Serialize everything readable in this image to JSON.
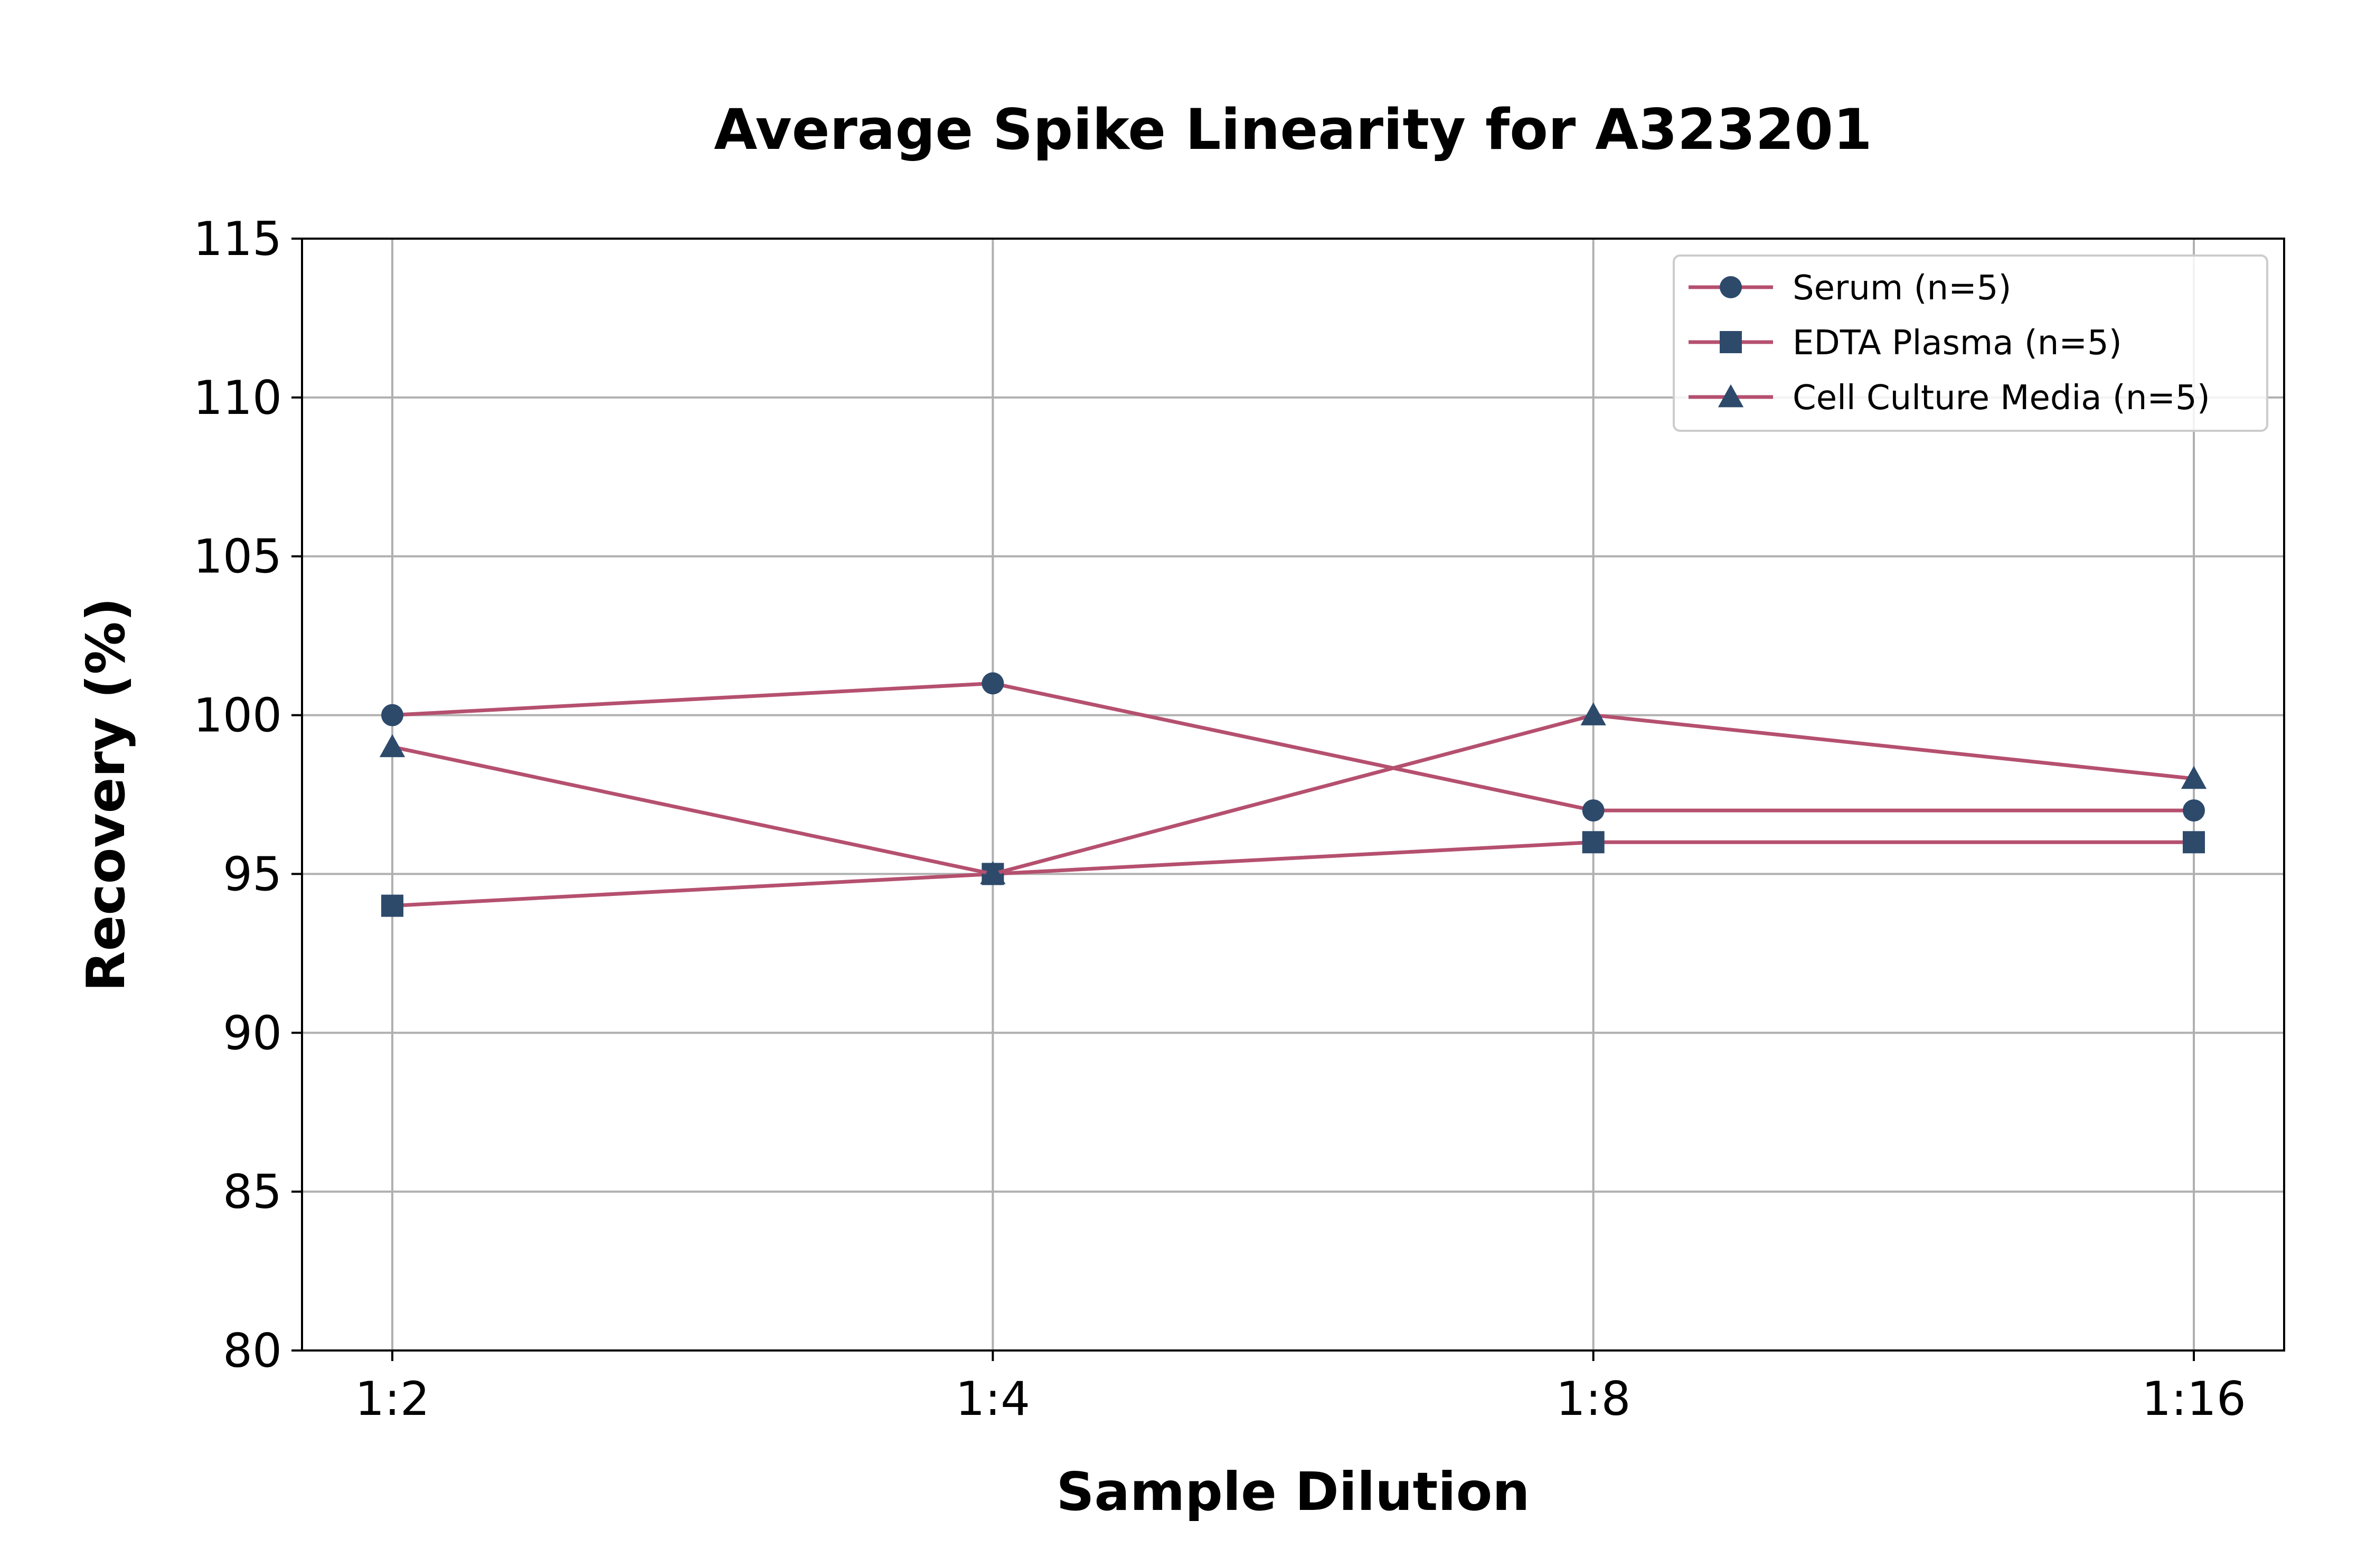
{
  "chart_data": {
    "type": "line",
    "title": "Average Spike Linearity for A323201",
    "xlabel": "Sample Dilution",
    "ylabel": "Recovery (%)",
    "categories": [
      "1:2",
      "1:4",
      "1:8",
      "1:16"
    ],
    "ylim": [
      80,
      115
    ],
    "yticks": [
      80,
      85,
      90,
      95,
      100,
      105,
      110,
      115
    ],
    "grid": true,
    "legend_position": "top-right",
    "line_color": "#b5506f",
    "marker_color": "#2d4a6b",
    "series": [
      {
        "name": "Serum (n=5)",
        "marker": "circle",
        "values": [
          100,
          101,
          97,
          97
        ]
      },
      {
        "name": "EDTA Plasma (n=5)",
        "marker": "square",
        "values": [
          94,
          95,
          96,
          96
        ]
      },
      {
        "name": "Cell Culture Media (n=5)",
        "marker": "triangle",
        "values": [
          99,
          95,
          100,
          98
        ]
      }
    ]
  }
}
